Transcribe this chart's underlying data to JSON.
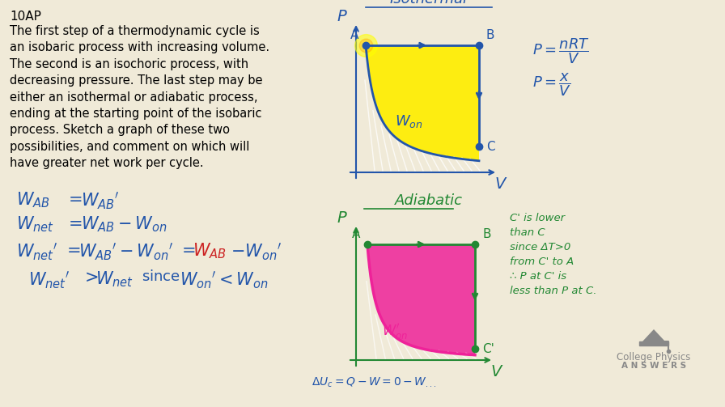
{
  "bg_color": "#f0ead8",
  "title_text": "10AP",
  "problem_text": "The first step of a thermodynamic cycle is\nan isobaric process with increasing volume.\nThe second is an isochoric process, with\ndecreasing pressure. The last step may be\neither an isothermal or adiabatic process,\nending at the starting point of the isobaric\nprocess. Sketch a graph of these two\npossibilities, and comment on which will\nhave greater net work per cycle.",
  "iso_label": "Isothermal",
  "adia_label": "Adiabatic",
  "adia_note": "C' is lower\nthan C\nsince ΔT>0\nfrom C' to A\n∴ P at C' is\nless than P at C.",
  "bottom_eq": "$\\Delta U_c = Q - W = 0 - W_{...}$",
  "blue_color": "#2255aa",
  "green_color": "#228833",
  "red_color": "#cc2222",
  "pink_color": "#ee2299",
  "yellow_color": "#ffee00",
  "gray_color": "#888888",
  "logo_line1": "College Physics",
  "logo_line2": "A N S W E R S"
}
